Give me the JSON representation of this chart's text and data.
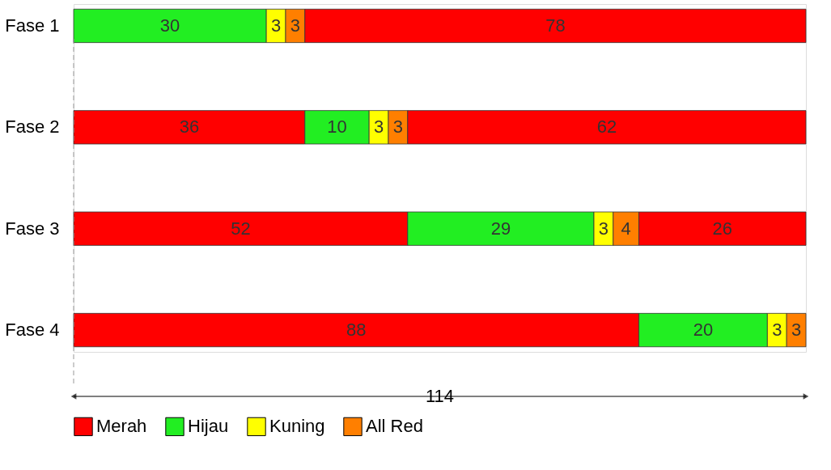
{
  "chart_data": {
    "type": "bar",
    "orientation": "horizontal",
    "stacked": true,
    "categories": [
      "Fase 1",
      "Fase 2",
      "Fase 3",
      "Fase 4"
    ],
    "series": [
      {
        "name": "Merah",
        "color": "#ff0000",
        "values": [
          null,
          36,
          52,
          88
        ]
      },
      {
        "name": "Hijau",
        "color": "#22ee22",
        "values": [
          30,
          10,
          29,
          20
        ]
      },
      {
        "name": "Kuning",
        "color": "#ffff00",
        "values": [
          3,
          3,
          3,
          3
        ]
      },
      {
        "name": "All Red",
        "color": "#ff7f00",
        "values": [
          3,
          3,
          4,
          3
        ]
      },
      {
        "color": "#ff0000",
        "values": [
          78,
          62,
          26,
          null
        ]
      }
    ],
    "xlim": [
      0,
      114
    ],
    "data_labels": true,
    "legend": "bottom",
    "tick_labels": "y",
    "annotations": [
      "114"
    ],
    "ref_lines": [
      {
        "axis": "x",
        "value": 0,
        "line_style": "dashed",
        "color": "#999999"
      }
    ]
  }
}
